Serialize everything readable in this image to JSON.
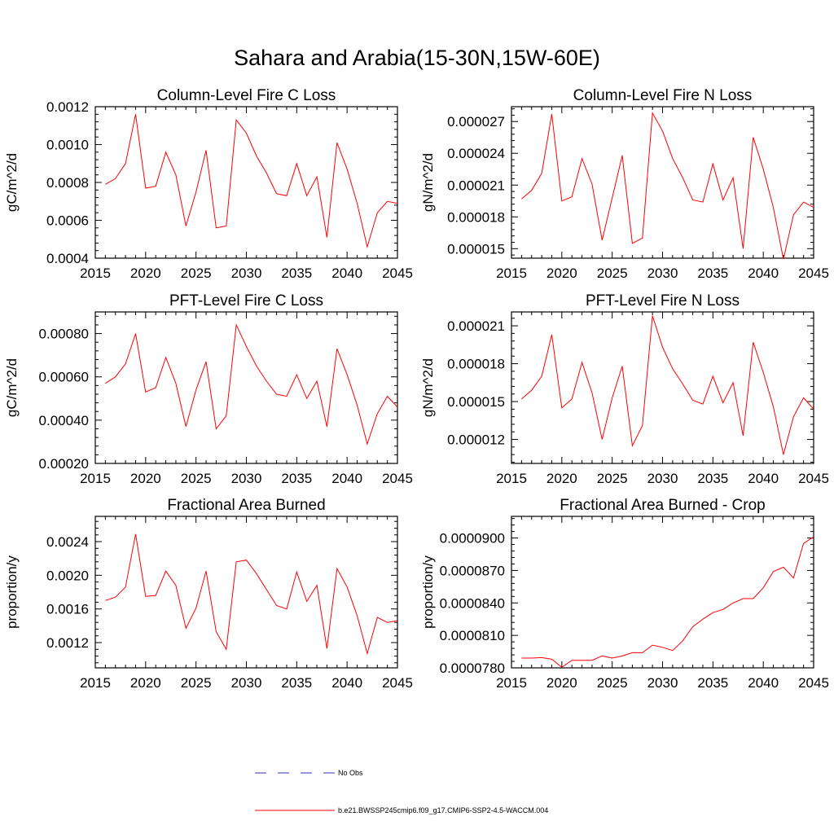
{
  "title": "Sahara and Arabia(15-30N,15W-60E)",
  "colors": {
    "model": "#ff0000",
    "obs": "#3030c0",
    "axis": "#000000"
  },
  "legend": {
    "obs_label": "No Obs",
    "model_label": "b.e21.BWSSP245cmip6.f09_g17.CMIP6-SSP2-4.5-WACCM.004"
  },
  "chart_data": [
    {
      "type": "line",
      "title": "Column-Level Fire C Loss",
      "xlabel": "",
      "ylabel": "gC/m^2/d",
      "xlim": [
        2015,
        2045
      ],
      "ylim": [
        0.0004,
        0.0012
      ],
      "xticks": [
        2015,
        2020,
        2025,
        2030,
        2035,
        2040,
        2045
      ],
      "yticks": [
        0.0004,
        0.0006,
        0.0008,
        0.001,
        0.0012
      ],
      "ytick_labels": [
        "0.0004",
        "0.0006",
        "0.0008",
        "0.0010",
        "0.0012"
      ],
      "x": [
        2016,
        2017,
        2018,
        2019,
        2020,
        2021,
        2022,
        2023,
        2024,
        2025,
        2026,
        2027,
        2028,
        2029,
        2030,
        2031,
        2032,
        2033,
        2034,
        2035,
        2036,
        2037,
        2038,
        2039,
        2040,
        2041,
        2042,
        2043,
        2044,
        2045
      ],
      "series": [
        {
          "values": [
            0.00079,
            0.00082,
            0.0009,
            0.00116,
            0.00077,
            0.00078,
            0.00096,
            0.00084,
            0.00057,
            0.00075,
            0.00097,
            0.00056,
            0.00057,
            0.00113,
            0.00106,
            0.00094,
            0.00085,
            0.00074,
            0.00073,
            0.0009,
            0.00073,
            0.00083,
            0.00051,
            0.00101,
            0.00087,
            0.00069,
            0.00046,
            0.00064,
            0.0007,
            0.00069
          ]
        }
      ]
    },
    {
      "type": "line",
      "title": "Column-Level Fire N Loss",
      "xlabel": "",
      "ylabel": "gN/m^2/d",
      "xlim": [
        2015,
        2045
      ],
      "ylim": [
        1.41e-05,
        2.84e-05
      ],
      "xticks": [
        2015,
        2020,
        2025,
        2030,
        2035,
        2040,
        2045
      ],
      "yticks": [
        1.5e-05,
        1.8e-05,
        2.1e-05,
        2.4e-05,
        2.7e-05
      ],
      "ytick_labels": [
        "0.000015",
        "0.000018",
        "0.000021",
        "0.000024",
        "0.000027"
      ],
      "x": [
        2016,
        2017,
        2018,
        2019,
        2020,
        2021,
        2022,
        2023,
        2024,
        2025,
        2026,
        2027,
        2028,
        2029,
        2030,
        2031,
        2032,
        2033,
        2034,
        2035,
        2036,
        2037,
        2038,
        2039,
        2040,
        2041,
        2042,
        2043,
        2044,
        2045
      ],
      "series": [
        {
          "values": [
            1.97e-05,
            2.05e-05,
            2.21e-05,
            2.77e-05,
            1.95e-05,
            1.99e-05,
            2.35e-05,
            2.11e-05,
            1.58e-05,
            1.98e-05,
            2.38e-05,
            1.55e-05,
            1.6e-05,
            2.78e-05,
            2.61e-05,
            2.35e-05,
            2.17e-05,
            1.96e-05,
            1.94e-05,
            2.3e-05,
            1.96e-05,
            2.17e-05,
            1.5e-05,
            2.55e-05,
            2.25e-05,
            1.89e-05,
            1.4e-05,
            1.82e-05,
            1.94e-05,
            1.89e-05
          ]
        }
      ]
    },
    {
      "type": "line",
      "title": "PFT-Level Fire C Loss",
      "xlabel": "",
      "ylabel": "gC/m^2/d",
      "xlim": [
        2015,
        2045
      ],
      "ylim": [
        0.0002,
        0.0009
      ],
      "xticks": [
        2015,
        2020,
        2025,
        2030,
        2035,
        2040,
        2045
      ],
      "yticks": [
        0.0002,
        0.0004,
        0.0006,
        0.0008
      ],
      "ytick_labels": [
        "0.00020",
        "0.00040",
        "0.00060",
        "0.00080"
      ],
      "x": [
        2016,
        2017,
        2018,
        2019,
        2020,
        2021,
        2022,
        2023,
        2024,
        2025,
        2026,
        2027,
        2028,
        2029,
        2030,
        2031,
        2032,
        2033,
        2034,
        2035,
        2036,
        2037,
        2038,
        2039,
        2040,
        2041,
        2042,
        2043,
        2044,
        2045
      ],
      "series": [
        {
          "values": [
            0.00057,
            0.0006,
            0.00066,
            0.0008,
            0.00053,
            0.00055,
            0.00069,
            0.00057,
            0.00037,
            0.00054,
            0.00067,
            0.00036,
            0.00042,
            0.00084,
            0.00074,
            0.00065,
            0.00058,
            0.00052,
            0.00051,
            0.00061,
            0.0005,
            0.00058,
            0.00037,
            0.00073,
            0.00061,
            0.00047,
            0.00029,
            0.00043,
            0.00051,
            0.00046
          ]
        }
      ]
    },
    {
      "type": "line",
      "title": "PFT-Level Fire N Loss",
      "xlabel": "",
      "ylabel": "gN/m^2/d",
      "xlim": [
        2015,
        2045
      ],
      "ylim": [
        1.01e-05,
        2.21e-05
      ],
      "xticks": [
        2015,
        2020,
        2025,
        2030,
        2035,
        2040,
        2045
      ],
      "yticks": [
        1.2e-05,
        1.5e-05,
        1.8e-05,
        2.1e-05
      ],
      "ytick_labels": [
        "0.000012",
        "0.000015",
        "0.000018",
        "0.000021"
      ],
      "x": [
        2016,
        2017,
        2018,
        2019,
        2020,
        2021,
        2022,
        2023,
        2024,
        2025,
        2026,
        2027,
        2028,
        2029,
        2030,
        2031,
        2032,
        2033,
        2034,
        2035,
        2036,
        2037,
        2038,
        2039,
        2040,
        2041,
        2042,
        2043,
        2044,
        2045
      ],
      "series": [
        {
          "values": [
            1.52e-05,
            1.59e-05,
            1.7e-05,
            2.03e-05,
            1.45e-05,
            1.52e-05,
            1.81e-05,
            1.57e-05,
            1.2e-05,
            1.53e-05,
            1.78e-05,
            1.15e-05,
            1.31e-05,
            2.18e-05,
            1.93e-05,
            1.76e-05,
            1.64e-05,
            1.51e-05,
            1.48e-05,
            1.7e-05,
            1.49e-05,
            1.65e-05,
            1.23e-05,
            1.97e-05,
            1.73e-05,
            1.46e-05,
            1.08e-05,
            1.38e-05,
            1.53e-05,
            1.44e-05
          ]
        }
      ]
    },
    {
      "type": "line",
      "title": "Fractional Area Burned",
      "xlabel": "",
      "ylabel": "proportion/y",
      "xlim": [
        2015,
        2045
      ],
      "ylim": [
        0.0009,
        0.0027
      ],
      "xticks": [
        2015,
        2020,
        2025,
        2030,
        2035,
        2040,
        2045
      ],
      "yticks": [
        0.0012,
        0.0016,
        0.002,
        0.0024
      ],
      "ytick_labels": [
        "0.0012",
        "0.0016",
        "0.0020",
        "0.0024"
      ],
      "x": [
        2016,
        2017,
        2018,
        2019,
        2020,
        2021,
        2022,
        2023,
        2024,
        2025,
        2026,
        2027,
        2028,
        2029,
        2030,
        2031,
        2032,
        2033,
        2034,
        2035,
        2036,
        2037,
        2038,
        2039,
        2040,
        2041,
        2042,
        2043,
        2044,
        2045
      ],
      "series": [
        {
          "values": [
            0.0017,
            0.00174,
            0.00186,
            0.00249,
            0.00175,
            0.00176,
            0.00205,
            0.00188,
            0.00137,
            0.00161,
            0.00205,
            0.00133,
            0.00112,
            0.00216,
            0.00218,
            0.00202,
            0.00183,
            0.00164,
            0.0016,
            0.00204,
            0.00169,
            0.00188,
            0.00113,
            0.00208,
            0.00186,
            0.00152,
            0.00107,
            0.0015,
            0.00144,
            0.00146
          ]
        }
      ]
    },
    {
      "type": "line",
      "title": "Fractional Area Burned - Crop",
      "xlabel": "",
      "ylabel": "proportion/y",
      "xlim": [
        2015,
        2045
      ],
      "ylim": [
        7.8e-05,
        9.2e-05
      ],
      "xticks": [
        2015,
        2020,
        2025,
        2030,
        2035,
        2040,
        2045
      ],
      "yticks": [
        7.8e-05,
        8.1e-05,
        8.4e-05,
        8.7e-05,
        9e-05
      ],
      "ytick_labels": [
        "0.0000780",
        "0.0000810",
        "0.0000840",
        "0.0000870",
        "0.0000900"
      ],
      "x": [
        2016,
        2017,
        2018,
        2019,
        2020,
        2021,
        2022,
        2023,
        2024,
        2025,
        2026,
        2027,
        2028,
        2029,
        2030,
        2031,
        2032,
        2033,
        2034,
        2035,
        2036,
        2037,
        2038,
        2039,
        2040,
        2041,
        2042,
        2043,
        2044,
        2045
      ],
      "series": [
        {
          "values": [
            7.89e-05,
            7.89e-05,
            7.895e-05,
            7.88e-05,
            7.805e-05,
            7.87e-05,
            7.87e-05,
            7.87e-05,
            7.91e-05,
            7.89e-05,
            7.91e-05,
            7.94e-05,
            7.94e-05,
            8.01e-05,
            7.99e-05,
            7.96e-05,
            8.05e-05,
            8.18e-05,
            8.25e-05,
            8.31e-05,
            8.34e-05,
            8.4e-05,
            8.44e-05,
            8.44e-05,
            8.54e-05,
            8.69e-05,
            8.73e-05,
            8.63e-05,
            8.95e-05,
            9.01e-05
          ]
        }
      ]
    }
  ]
}
